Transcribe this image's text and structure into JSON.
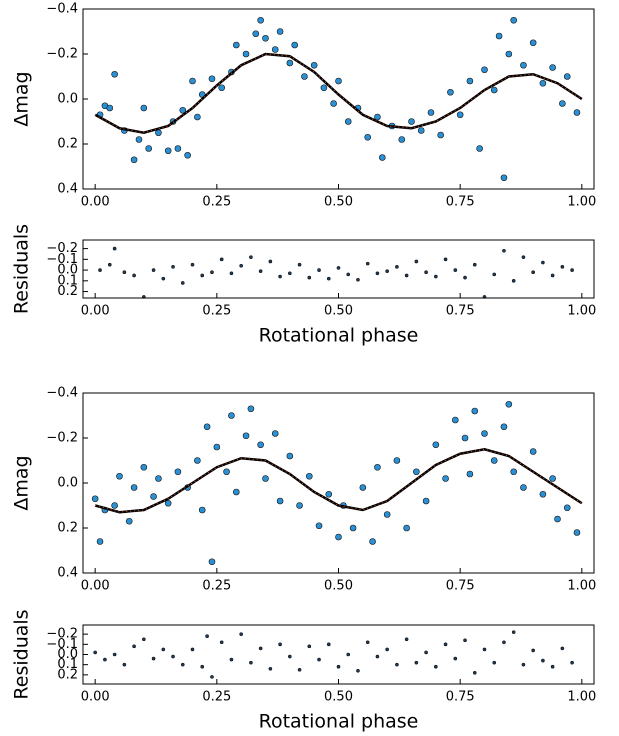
{
  "chart_data": [
    {
      "type": "scatter",
      "ylabel": "Δmag",
      "xlim": [
        -0.025,
        1.025
      ],
      "ylim": [
        0.4,
        -0.4
      ],
      "xticks": [
        {
          "value": 0,
          "label": "0.00"
        },
        {
          "value": 0.25,
          "label": "0.25"
        },
        {
          "value": 0.5,
          "label": "0.50"
        },
        {
          "value": 0.75,
          "label": "0.75"
        },
        {
          "value": 1,
          "label": "1.00"
        }
      ],
      "yticks": [
        {
          "value": -0.4,
          "label": "−0.4"
        },
        {
          "value": -0.2,
          "label": "−0.2"
        },
        {
          "value": 0,
          "label": "0.0"
        },
        0.2,
        0.4
      ],
      "series": [
        {
          "type": "points",
          "color": "#2b8fd3",
          "x": [
            0.01,
            0.02,
            0.03,
            0.04,
            0.06,
            0.08,
            0.09,
            0.1,
            0.11,
            0.13,
            0.15,
            0.16,
            0.17,
            0.18,
            0.19,
            0.2,
            0.21,
            0.22,
            0.24,
            0.26,
            0.28,
            0.29,
            0.31,
            0.33,
            0.34,
            0.35,
            0.37,
            0.38,
            0.4,
            0.41,
            0.43,
            0.45,
            0.47,
            0.49,
            0.5,
            0.52,
            0.54,
            0.56,
            0.58,
            0.59,
            0.61,
            0.63,
            0.65,
            0.67,
            0.69,
            0.71,
            0.73,
            0.75,
            0.77,
            0.79,
            0.8,
            0.82,
            0.83,
            0.84,
            0.85,
            0.86,
            0.88,
            0.9,
            0.92,
            0.94,
            0.96,
            0.97,
            0.99
          ],
          "values": [
            0.07,
            0.03,
            0.04,
            -0.11,
            0.14,
            0.27,
            0.18,
            0.04,
            0.22,
            0.15,
            0.23,
            0.1,
            0.22,
            0.05,
            0.25,
            -0.08,
            0.08,
            -0.02,
            -0.09,
            -0.05,
            -0.12,
            -0.24,
            -0.2,
            -0.29,
            -0.35,
            -0.27,
            -0.22,
            -0.3,
            -0.16,
            -0.24,
            -0.1,
            -0.15,
            -0.05,
            0.02,
            -0.08,
            0.1,
            0.04,
            0.17,
            0.08,
            0.26,
            0.12,
            0.18,
            0.1,
            0.14,
            0.06,
            0.16,
            -0.03,
            0.07,
            -0.08,
            0.22,
            -0.13,
            -0.04,
            -0.28,
            0.35,
            -0.2,
            -0.35,
            -0.15,
            -0.25,
            -0.07,
            -0.14,
            0.02,
            -0.1,
            0.06
          ]
        },
        {
          "type": "line",
          "color": "#000000",
          "x": [
            0,
            0.05,
            0.1,
            0.15,
            0.2,
            0.25,
            0.3,
            0.35,
            0.4,
            0.45,
            0.5,
            0.55,
            0.6,
            0.65,
            0.7,
            0.75,
            0.8,
            0.85,
            0.9,
            0.95,
            1
          ],
          "values": [
            0.07,
            0.13,
            0.15,
            0.12,
            0.04,
            -0.06,
            -0.15,
            -0.2,
            -0.19,
            -0.12,
            -0.02,
            0.07,
            0.12,
            0.13,
            0.1,
            0.04,
            -0.04,
            -0.1,
            -0.11,
            -0.07,
            0
          ]
        }
      ]
    },
    {
      "type": "scatter",
      "ylabel": "Residuals",
      "xlabel": "Rotational phase",
      "xlim": [
        -0.025,
        1.025
      ],
      "ylim": [
        0.26,
        -0.28
      ],
      "xticks": [
        {
          "value": 0,
          "label": "0.00"
        },
        {
          "value": 0.25,
          "label": "0.25"
        },
        {
          "value": 0.5,
          "label": "0.50"
        },
        {
          "value": 0.75,
          "label": "0.75"
        },
        {
          "value": 1,
          "label": "1.00"
        }
      ],
      "yticks": [
        {
          "value": -0.2,
          "label": "−0.2"
        },
        {
          "value": -0.1,
          "label": "−0.1"
        },
        {
          "value": 0,
          "label": "0.0"
        },
        0.1,
        0.2
      ],
      "series": [
        {
          "type": "points",
          "color": "#1f3d5a",
          "x": [
            0.01,
            0.03,
            0.04,
            0.06,
            0.08,
            0.1,
            0.12,
            0.14,
            0.16,
            0.18,
            0.2,
            0.22,
            0.24,
            0.26,
            0.28,
            0.3,
            0.32,
            0.34,
            0.36,
            0.38,
            0.4,
            0.42,
            0.44,
            0.46,
            0.48,
            0.5,
            0.52,
            0.54,
            0.56,
            0.58,
            0.6,
            0.62,
            0.64,
            0.66,
            0.68,
            0.7,
            0.72,
            0.74,
            0.76,
            0.78,
            0.8,
            0.82,
            0.84,
            0.86,
            0.88,
            0.9,
            0.92,
            0.94,
            0.96,
            0.98
          ],
          "values": [
            0.0,
            -0.05,
            -0.2,
            0.02,
            0.05,
            0.25,
            0.0,
            0.08,
            -0.03,
            0.12,
            -0.05,
            0.05,
            0.02,
            -0.1,
            0.03,
            -0.04,
            -0.12,
            0.01,
            -0.08,
            0.06,
            0.03,
            -0.05,
            0.07,
            0.0,
            0.08,
            -0.02,
            0.04,
            0.09,
            -0.06,
            0.03,
            0.01,
            -0.03,
            0.05,
            -0.08,
            0.02,
            0.06,
            -0.1,
            0.0,
            0.07,
            -0.05,
            0.25,
            0.04,
            -0.18,
            0.1,
            -0.12,
            0.02,
            -0.07,
            0.05,
            -0.03,
            0.0
          ]
        }
      ]
    },
    {
      "type": "scatter",
      "ylabel": "Δmag",
      "xlim": [
        -0.025,
        1.025
      ],
      "ylim": [
        0.4,
        -0.4
      ],
      "xticks": [
        {
          "value": 0,
          "label": "0.00"
        },
        {
          "value": 0.25,
          "label": "0.25"
        },
        {
          "value": 0.5,
          "label": "0.50"
        },
        {
          "value": 0.75,
          "label": "0.75"
        },
        {
          "value": 1,
          "label": "1.00"
        }
      ],
      "yticks": [
        {
          "value": -0.4,
          "label": "−0.4"
        },
        {
          "value": -0.2,
          "label": "−0.2"
        },
        {
          "value": 0,
          "label": "0.0"
        },
        0.2,
        0.4
      ],
      "series": [
        {
          "type": "points",
          "color": "#2b8fd3",
          "x": [
            0.0,
            0.01,
            0.02,
            0.04,
            0.05,
            0.07,
            0.08,
            0.1,
            0.12,
            0.13,
            0.15,
            0.17,
            0.19,
            0.21,
            0.22,
            0.23,
            0.24,
            0.25,
            0.27,
            0.28,
            0.29,
            0.31,
            0.32,
            0.34,
            0.35,
            0.37,
            0.38,
            0.4,
            0.42,
            0.44,
            0.46,
            0.48,
            0.5,
            0.51,
            0.53,
            0.55,
            0.57,
            0.58,
            0.6,
            0.62,
            0.64,
            0.66,
            0.68,
            0.7,
            0.72,
            0.74,
            0.76,
            0.77,
            0.78,
            0.8,
            0.82,
            0.84,
            0.85,
            0.86,
            0.88,
            0.9,
            0.92,
            0.94,
            0.95,
            0.97,
            0.99
          ],
          "values": [
            0.07,
            0.26,
            0.12,
            0.1,
            -0.03,
            0.17,
            0.02,
            -0.07,
            0.06,
            -0.02,
            0.09,
            -0.05,
            0.02,
            -0.1,
            0.12,
            -0.25,
            0.35,
            -0.16,
            -0.05,
            -0.3,
            0.04,
            -0.21,
            -0.33,
            -0.17,
            -0.02,
            -0.22,
            0.08,
            -0.12,
            0.1,
            -0.03,
            0.19,
            0.05,
            0.24,
            0.1,
            0.2,
            0.02,
            0.26,
            -0.07,
            0.14,
            -0.1,
            0.2,
            -0.05,
            0.08,
            -0.17,
            -0.02,
            -0.28,
            -0.2,
            -0.04,
            -0.32,
            -0.22,
            -0.1,
            -0.25,
            -0.35,
            -0.05,
            0.02,
            -0.14,
            0.05,
            -0.02,
            0.16,
            0.11,
            0.22
          ]
        },
        {
          "type": "line",
          "color": "#000000",
          "x": [
            0,
            0.05,
            0.1,
            0.15,
            0.2,
            0.25,
            0.3,
            0.35,
            0.4,
            0.45,
            0.5,
            0.55,
            0.6,
            0.65,
            0.7,
            0.75,
            0.8,
            0.85,
            0.9,
            0.95,
            1
          ],
          "values": [
            0.1,
            0.13,
            0.12,
            0.07,
            0,
            -0.07,
            -0.11,
            -0.1,
            -0.04,
            0.04,
            0.1,
            0.12,
            0.08,
            0,
            -0.08,
            -0.13,
            -0.15,
            -0.12,
            -0.05,
            0.02,
            0.09
          ]
        }
      ]
    },
    {
      "type": "scatter",
      "ylabel": "Residuals",
      "xlabel": "Rotational phase",
      "xlim": [
        -0.025,
        1.025
      ],
      "ylim": [
        0.29,
        -0.29
      ],
      "xticks": [
        {
          "value": 0,
          "label": "0.00"
        },
        {
          "value": 0.25,
          "label": "0.25"
        },
        {
          "value": 0.5,
          "label": "0.50"
        },
        {
          "value": 0.75,
          "label": "0.75"
        },
        {
          "value": 1,
          "label": "1.00"
        }
      ],
      "yticks": [
        {
          "value": -0.2,
          "label": "−0.2"
        },
        {
          "value": -0.1,
          "label": "−0.1"
        },
        {
          "value": 0,
          "label": "0.0"
        },
        0.1,
        0.2
      ],
      "series": [
        {
          "type": "points",
          "color": "#1f3d5a",
          "x": [
            0.0,
            0.02,
            0.04,
            0.06,
            0.08,
            0.1,
            0.12,
            0.14,
            0.16,
            0.18,
            0.2,
            0.22,
            0.23,
            0.24,
            0.26,
            0.28,
            0.3,
            0.32,
            0.34,
            0.36,
            0.38,
            0.4,
            0.42,
            0.44,
            0.46,
            0.48,
            0.5,
            0.52,
            0.54,
            0.56,
            0.58,
            0.6,
            0.62,
            0.64,
            0.66,
            0.68,
            0.7,
            0.72,
            0.74,
            0.76,
            0.78,
            0.8,
            0.82,
            0.84,
            0.86,
            0.88,
            0.9,
            0.92,
            0.94,
            0.96,
            0.98
          ],
          "values": [
            -0.02,
            0.05,
            0.0,
            0.1,
            -0.08,
            -0.15,
            0.04,
            -0.05,
            0.02,
            0.1,
            -0.05,
            0.12,
            -0.18,
            0.22,
            -0.12,
            0.05,
            -0.2,
            0.08,
            -0.06,
            0.14,
            -0.1,
            0.02,
            0.15,
            -0.08,
            0.05,
            -0.1,
            0.12,
            0.0,
            0.16,
            -0.12,
            0.02,
            -0.05,
            0.1,
            -0.15,
            0.08,
            -0.02,
            0.12,
            -0.1,
            0.04,
            -0.14,
            0.18,
            -0.05,
            0.08,
            -0.12,
            -0.22,
            0.1,
            -0.04,
            0.06,
            0.12,
            -0.06,
            0.08
          ]
        }
      ]
    }
  ]
}
